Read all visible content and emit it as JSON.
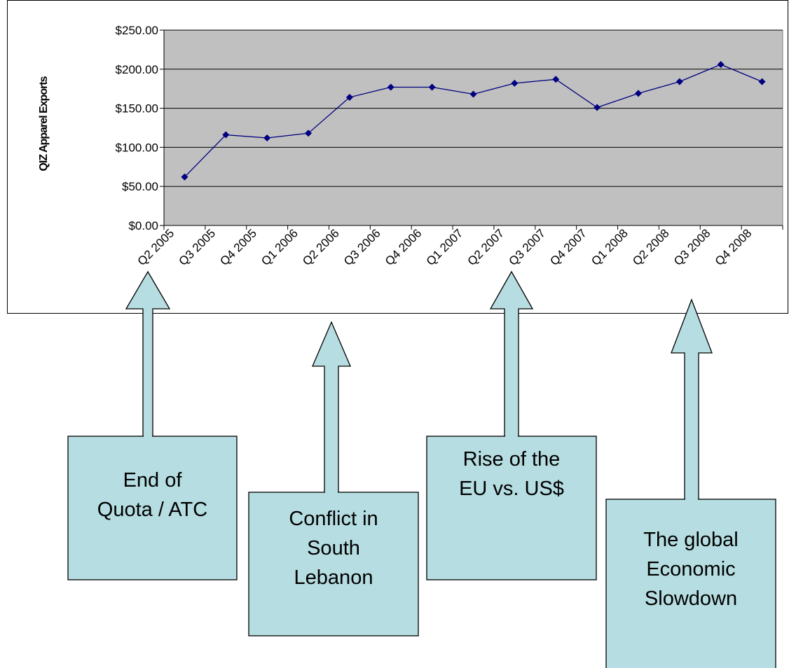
{
  "chart_data": {
    "type": "line",
    "y_axis_label": "QIZ Apparel Exports",
    "categories": [
      "Q2 2005",
      "Q3 2005",
      "Q4 2005",
      "Q1 2006",
      "Q2 2006",
      "Q3 2006",
      "Q4 2006",
      "Q1 2007",
      "Q2 2007",
      "Q3 2007",
      "Q4 2007",
      "Q1 2008",
      "Q2 2008",
      "Q3 2008",
      "Q4 2008"
    ],
    "series": [
      {
        "color": "#000080",
        "values": [
          62,
          116,
          112,
          118,
          164,
          177,
          177,
          168,
          182,
          187,
          151,
          169,
          184,
          206,
          184
        ]
      }
    ],
    "ylim": [
      0,
      250
    ],
    "yticks": [
      {
        "value": 0,
        "label": "$0.00"
      },
      {
        "value": 50,
        "label": "$50.00"
      },
      {
        "value": 100,
        "label": "$100.00"
      },
      {
        "value": 150,
        "label": "$150.00"
      },
      {
        "value": 200,
        "label": "$200.00"
      },
      {
        "value": 250,
        "label": "$250.00"
      }
    ],
    "grid": true,
    "plot_background": "#c0c0c0",
    "annotations": [
      {
        "lines": [
          "End of",
          "Quota / ATC"
        ]
      },
      {
        "lines": [
          "Conflict in",
          "South",
          "Lebanon"
        ]
      },
      {
        "lines": [
          "Rise of the",
          "EU vs. US$"
        ]
      },
      {
        "lines": [
          "The global",
          "Economic",
          "Slowdown"
        ]
      }
    ]
  }
}
